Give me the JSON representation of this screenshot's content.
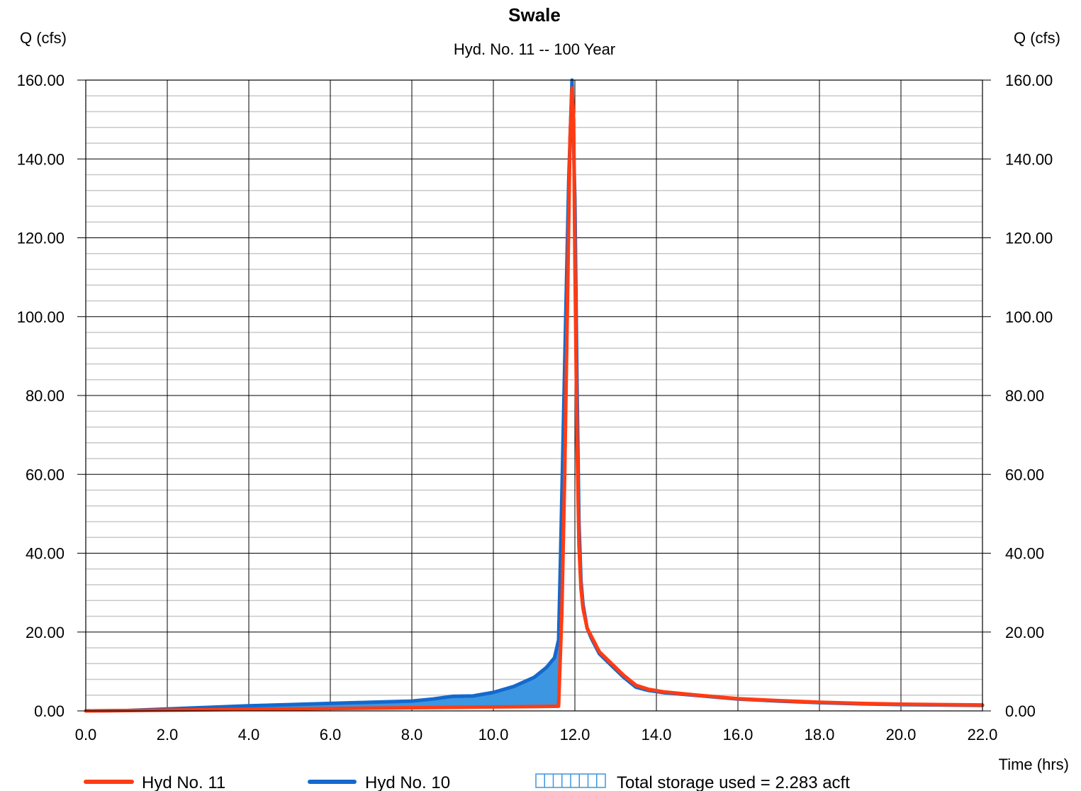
{
  "chart_data": {
    "type": "area",
    "title": "Swale",
    "subtitle": "Hyd. No. 11 -- 100 Year",
    "ylabel_left": "Q (cfs)",
    "ylabel_right": "Q (cfs)",
    "xlabel": "Time (hrs)",
    "xlim": [
      0,
      22
    ],
    "ylim": [
      0,
      160
    ],
    "x_ticks": [
      "0.0",
      "2.0",
      "4.0",
      "6.0",
      "8.0",
      "10.0",
      "12.0",
      "14.0",
      "16.0",
      "18.0",
      "20.0",
      "22.0"
    ],
    "y_ticks": [
      "0.00",
      "20.00",
      "40.00",
      "60.00",
      "80.00",
      "100.00",
      "120.00",
      "140.00",
      "160.00"
    ],
    "grid": true,
    "legend_position": "bottom",
    "series": [
      {
        "name": "Hyd No. 11",
        "color": "#ff3c14",
        "x": [
          0.0,
          1.0,
          2.0,
          3.0,
          4.0,
          5.0,
          6.0,
          7.0,
          8.0,
          9.0,
          10.0,
          11.0,
          11.6,
          11.68,
          11.75,
          11.82,
          11.88,
          11.93,
          11.97,
          12.0,
          12.05,
          12.1,
          12.15,
          12.2,
          12.3,
          12.4,
          12.6,
          12.9,
          13.2,
          13.5,
          13.8,
          14.2,
          15.0,
          16.0,
          17.0,
          18.0,
          19.0,
          20.0,
          21.0,
          22.0
        ],
        "values": [
          0.0,
          0.1,
          0.2,
          0.3,
          0.4,
          0.5,
          0.6,
          0.7,
          0.8,
          0.9,
          1.0,
          1.1,
          1.2,
          25.0,
          60.0,
          105.0,
          145.0,
          158.0,
          150.0,
          115.0,
          70.0,
          42.0,
          31.0,
          26.0,
          21.0,
          19.0,
          15.0,
          12.0,
          9.0,
          6.5,
          5.5,
          4.8,
          4.0,
          3.1,
          2.6,
          2.2,
          1.9,
          1.7,
          1.6,
          1.5
        ]
      },
      {
        "name": "Hyd No. 10",
        "color": "#1469cd",
        "x": [
          0.0,
          1.0,
          2.0,
          3.0,
          4.0,
          5.0,
          6.0,
          7.0,
          8.0,
          8.5,
          9.0,
          9.5,
          10.0,
          10.5,
          11.0,
          11.3,
          11.5,
          11.6,
          11.65,
          11.75,
          11.85,
          11.93,
          12.0,
          12.05,
          12.1,
          12.15,
          12.2,
          12.3,
          12.4,
          12.6,
          12.9,
          13.2,
          13.5,
          13.8,
          14.2,
          15.0,
          16.0,
          17.0,
          18.0,
          19.0,
          20.0,
          21.0,
          22.0
        ],
        "values": [
          0.0,
          0.1,
          0.5,
          0.9,
          1.3,
          1.6,
          1.9,
          2.2,
          2.5,
          3.0,
          3.7,
          3.8,
          4.7,
          6.2,
          8.5,
          11.0,
          13.5,
          18.0,
          40.0,
          88.0,
          135.0,
          160.0,
          130.0,
          85.0,
          48.0,
          33.0,
          27.0,
          21.0,
          18.5,
          14.5,
          11.5,
          8.5,
          6.0,
          5.2,
          4.6,
          3.9,
          3.0,
          2.5,
          2.1,
          1.8,
          1.6,
          1.5,
          1.4
        ]
      }
    ],
    "storage_legend": "Total storage used = 2.283 acft",
    "storage_fill_color": "#3c96e1"
  }
}
